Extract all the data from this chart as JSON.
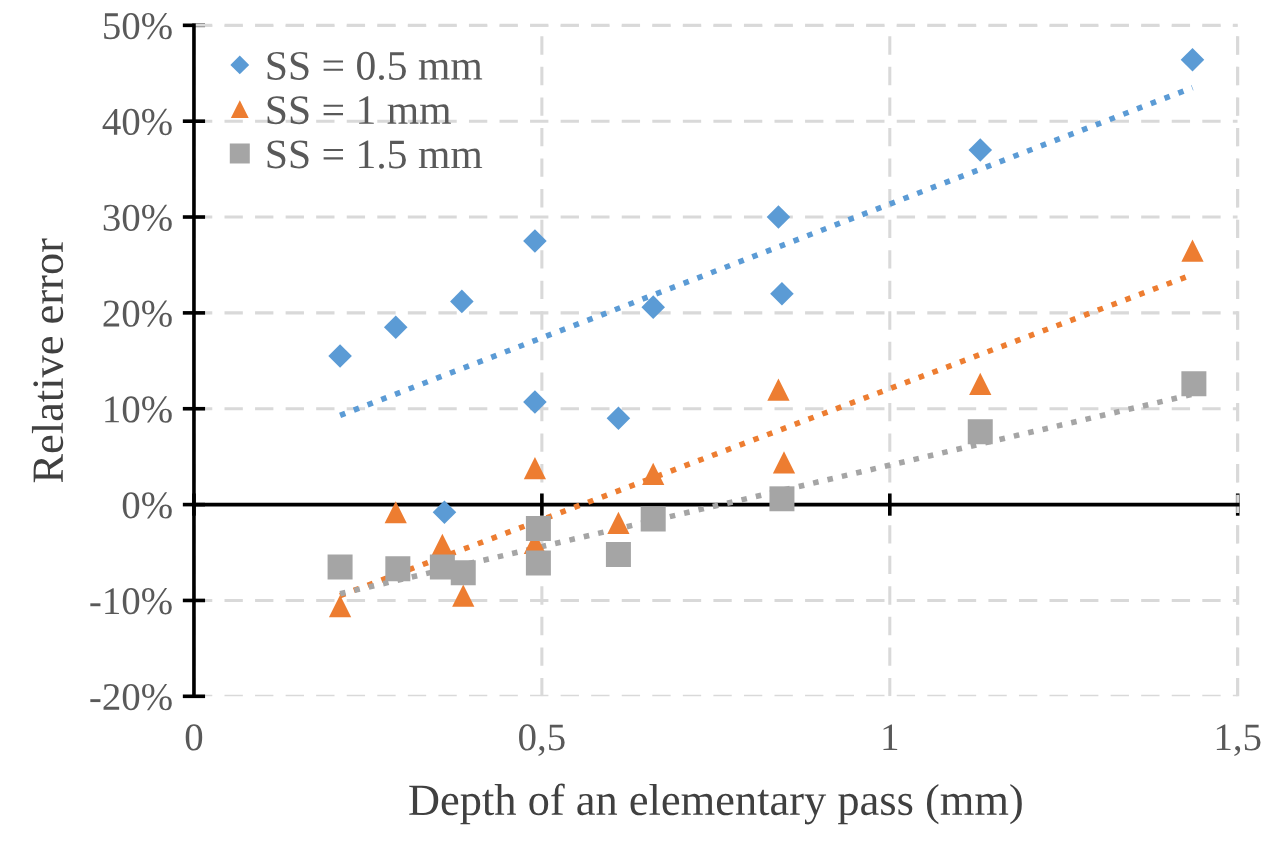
{
  "chart_data": {
    "type": "scatter",
    "xlabel": "Depth of an elementary pass (mm)",
    "ylabel": "Relative error",
    "xlim": [
      0,
      1.5
    ],
    "xticks": [
      0,
      {
        "value": 0.5,
        "label": "0,5"
      },
      1,
      {
        "value": 1.5,
        "label": "1,5"
      }
    ],
    "ylim": [
      -20,
      50
    ],
    "yticks": [
      {
        "value": -20,
        "label": "-20%"
      },
      {
        "value": -10,
        "label": "-10%"
      },
      {
        "value": 0,
        "label": "0%"
      },
      {
        "value": 10,
        "label": "10%"
      },
      {
        "value": 20,
        "label": "20%"
      },
      {
        "value": 30,
        "label": "30%"
      },
      {
        "value": 40,
        "label": "40%"
      },
      {
        "value": 50,
        "label": "50%"
      }
    ],
    "grid": true,
    "legend": "top left",
    "series": [
      {
        "name": "SS = 0.5 mm",
        "color": "#5b9bd5",
        "marker": "diamond",
        "x": [
          0.21,
          0.29,
          0.36,
          0.385,
          0.49,
          0.49,
          0.61,
          0.66,
          0.84,
          0.845,
          1.13,
          1.435
        ],
        "values": [
          15.5,
          18.5,
          -0.8,
          21.2,
          27.5,
          10.7,
          9.0,
          20.6,
          30,
          22,
          37,
          46.4
        ]
      },
      {
        "name": "SS = 1 mm",
        "color": "#ed7d31",
        "marker": "triangle",
        "x": [
          0.21,
          0.29,
          0.357,
          0.387,
          0.49,
          0.49,
          0.61,
          0.66,
          0.84,
          0.848,
          1.13,
          1.435
        ],
        "values": [
          -10.6,
          -0.8,
          -4.2,
          -9.5,
          3.8,
          -4.0,
          -1.9,
          3.2,
          12.0,
          4.4,
          12.6,
          26.5
        ]
      },
      {
        "name": "SS = 1.5 mm",
        "color": "#a5a5a5",
        "marker": "square",
        "x": [
          0.21,
          0.293,
          0.357,
          0.387,
          0.495,
          0.495,
          0.61,
          0.66,
          0.845,
          1.13,
          1.437
        ],
        "values": [
          -6.5,
          -6.7,
          -6.5,
          -7.1,
          -2.5,
          -6.1,
          -5.2,
          -1.5,
          0.6,
          7.6,
          12.6
        ]
      },
      {
        "type": "line",
        "color": "#5b9bd5",
        "line_style": "dotted",
        "marker": "none",
        "x": [
          0.21,
          1.435
        ],
        "values": [
          9.3,
          43.5
        ]
      },
      {
        "type": "line",
        "color": "#ed7d31",
        "line_style": "dotted",
        "marker": "none",
        "x": [
          0.21,
          1.435
        ],
        "values": [
          -9.5,
          24.0
        ]
      },
      {
        "type": "line",
        "color": "#a5a5a5",
        "line_style": "dotted",
        "marker": "none",
        "x": [
          0.21,
          1.435
        ],
        "values": [
          -9.3,
          11.5
        ]
      }
    ]
  }
}
